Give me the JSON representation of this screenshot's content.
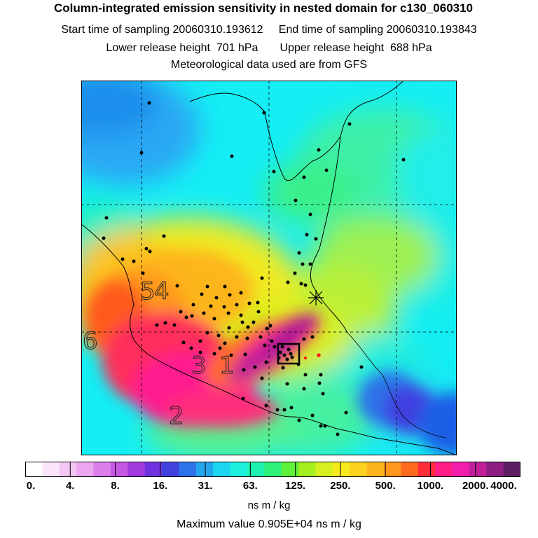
{
  "header": {
    "title": "Column-integrated emission sensitivity in nested domain for c130_060310",
    "sampling_line": "Start time of sampling 20060310.193612     End time of sampling 20060310.193843",
    "release_line": "Lower release height  701 hPa       Upper release height  688 hPa",
    "met_line": "Meteorological data used are from GFS"
  },
  "map": {
    "cluster_labels": [
      "5",
      "4",
      "6",
      "3",
      "1",
      "2"
    ]
  },
  "colorbar": {
    "colors": [
      "#ffffff",
      "#fbe6fb",
      "#f4c6f4",
      "#eba6f0",
      "#dc7fec",
      "#c658e6",
      "#a23ae0",
      "#6f34df",
      "#4141e0",
      "#2d72e8",
      "#23a6ee",
      "#1ed6f0",
      "#1ef0e0",
      "#1ef0b0",
      "#2ef07a",
      "#5ef03a",
      "#a6ef1e",
      "#d6ef1e",
      "#f6ea1e",
      "#fbd21e",
      "#fdb51e",
      "#ff961e",
      "#ff6a1e",
      "#ff2e3a",
      "#ff1e86",
      "#f01eaa",
      "#c01e9a",
      "#8e1e82",
      "#5e1e64"
    ],
    "tick_labels": [
      "0.",
      "4.",
      "8.",
      "16.",
      "31.",
      "63.",
      "125.",
      "250.",
      "500.",
      "1000.",
      "2000.",
      "4000."
    ],
    "unit": "ns m / kg"
  },
  "footer": {
    "max_value": "Maximum value  0.905E+04 ns m / kg"
  }
}
